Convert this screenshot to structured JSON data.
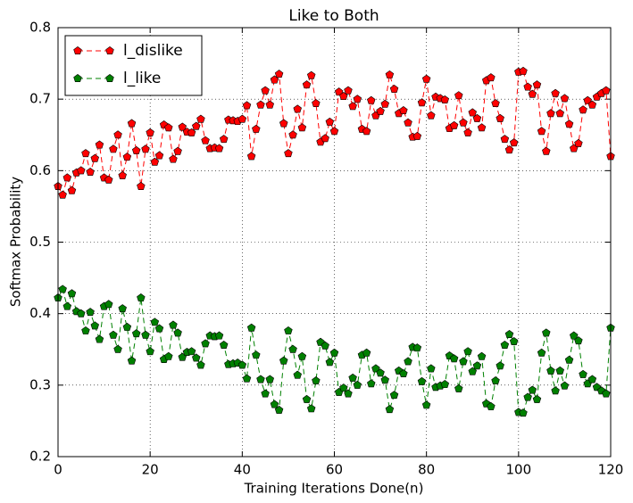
{
  "chart_data": {
    "type": "line",
    "title": "Like to Both",
    "x_label": "Training Iterations Done(n)",
    "y_label": "Softmax Probability",
    "x": [
      0,
      1,
      2,
      3,
      4,
      5,
      6,
      7,
      8,
      9,
      10,
      11,
      12,
      13,
      14,
      15,
      16,
      17,
      18,
      19,
      20,
      21,
      22,
      23,
      24,
      25,
      26,
      27,
      28,
      29,
      30,
      31,
      32,
      33,
      34,
      35,
      36,
      37,
      38,
      39,
      40,
      41,
      42,
      43,
      44,
      45,
      46,
      47,
      48,
      49,
      50,
      51,
      52,
      53,
      54,
      55,
      56,
      57,
      58,
      59,
      60,
      61,
      62,
      63,
      64,
      65,
      66,
      67,
      68,
      69,
      70,
      71,
      72,
      73,
      74,
      75,
      76,
      77,
      78,
      79,
      80,
      81,
      82,
      83,
      84,
      85,
      86,
      87,
      88,
      89,
      90,
      91,
      92,
      93,
      94,
      95,
      96,
      97,
      98,
      99,
      100,
      101,
      102,
      103,
      104,
      105,
      106,
      107,
      108,
      109,
      110,
      111,
      112,
      113,
      114,
      115,
      116,
      117,
      118,
      119,
      120
    ],
    "series": [
      {
        "name": "l_dislike",
        "color": "#ff0000",
        "values": [
          0.578,
          0.566,
          0.59,
          0.572,
          0.597,
          0.6,
          0.624,
          0.598,
          0.617,
          0.636,
          0.59,
          0.587,
          0.63,
          0.65,
          0.593,
          0.619,
          0.666,
          0.628,
          0.578,
          0.63,
          0.653,
          0.612,
          0.621,
          0.664,
          0.66,
          0.616,
          0.627,
          0.661,
          0.654,
          0.653,
          0.662,
          0.672,
          0.642,
          0.631,
          0.632,
          0.631,
          0.644,
          0.671,
          0.67,
          0.669,
          0.672,
          0.691,
          0.62,
          0.658,
          0.692,
          0.712,
          0.692,
          0.727,
          0.735,
          0.666,
          0.624,
          0.65,
          0.686,
          0.66,
          0.72,
          0.733,
          0.694,
          0.64,
          0.645,
          0.668,
          0.655,
          0.71,
          0.704,
          0.712,
          0.69,
          0.7,
          0.658,
          0.655,
          0.698,
          0.677,
          0.683,
          0.693,
          0.734,
          0.714,
          0.68,
          0.684,
          0.667,
          0.647,
          0.648,
          0.695,
          0.728,
          0.677,
          0.703,
          0.701,
          0.699,
          0.659,
          0.663,
          0.705,
          0.667,
          0.653,
          0.681,
          0.673,
          0.66,
          0.726,
          0.73,
          0.694,
          0.673,
          0.644,
          0.629,
          0.639,
          0.738,
          0.739,
          0.717,
          0.707,
          0.72,
          0.655,
          0.627,
          0.68,
          0.708,
          0.68,
          0.701,
          0.665,
          0.631,
          0.638,
          0.685,
          0.698,
          0.692,
          0.703,
          0.708,
          0.712,
          0.62
        ]
      },
      {
        "name": "l_like",
        "color": "#008000",
        "values": [
          0.422,
          0.434,
          0.41,
          0.428,
          0.403,
          0.4,
          0.376,
          0.402,
          0.383,
          0.364,
          0.41,
          0.413,
          0.37,
          0.35,
          0.407,
          0.381,
          0.334,
          0.372,
          0.422,
          0.37,
          0.347,
          0.388,
          0.379,
          0.336,
          0.34,
          0.384,
          0.373,
          0.339,
          0.346,
          0.347,
          0.338,
          0.328,
          0.358,
          0.369,
          0.368,
          0.369,
          0.356,
          0.329,
          0.33,
          0.331,
          0.328,
          0.309,
          0.38,
          0.342,
          0.308,
          0.288,
          0.308,
          0.273,
          0.265,
          0.334,
          0.376,
          0.35,
          0.314,
          0.34,
          0.28,
          0.267,
          0.306,
          0.36,
          0.355,
          0.332,
          0.345,
          0.29,
          0.296,
          0.288,
          0.31,
          0.3,
          0.342,
          0.345,
          0.302,
          0.323,
          0.317,
          0.307,
          0.266,
          0.286,
          0.32,
          0.316,
          0.333,
          0.353,
          0.352,
          0.305,
          0.272,
          0.323,
          0.297,
          0.299,
          0.301,
          0.341,
          0.337,
          0.295,
          0.333,
          0.347,
          0.319,
          0.327,
          0.34,
          0.274,
          0.27,
          0.306,
          0.327,
          0.356,
          0.371,
          0.361,
          0.262,
          0.261,
          0.283,
          0.293,
          0.28,
          0.345,
          0.373,
          0.32,
          0.292,
          0.32,
          0.299,
          0.335,
          0.369,
          0.362,
          0.315,
          0.302,
          0.308,
          0.297,
          0.292,
          0.288,
          0.38
        ]
      }
    ],
    "xlim": [
      0,
      120
    ],
    "xticks": [
      0,
      20,
      40,
      60,
      80,
      100,
      120
    ],
    "ylim": [
      0.2,
      0.8
    ],
    "yticks": [
      0.2,
      0.3,
      0.4,
      0.5,
      0.6,
      0.7,
      0.8
    ],
    "grid": true,
    "legend": "upper left"
  }
}
